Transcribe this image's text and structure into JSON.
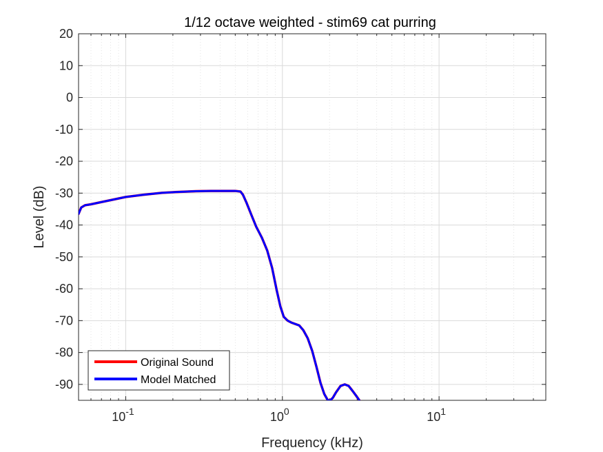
{
  "chart_data": {
    "type": "line",
    "title": "1/12 octave weighted - stim69 cat purring",
    "xlabel": "Frequency (kHz)",
    "ylabel": "Level (dB)",
    "xscale": "log",
    "xlim": [
      0.05,
      48
    ],
    "ylim": [
      -95,
      20
    ],
    "grid": true,
    "minor_grid": true,
    "x_ticks": [
      {
        "value": 0.1,
        "base": "10",
        "exp": "-1"
      },
      {
        "value": 1,
        "base": "10",
        "exp": "0"
      },
      {
        "value": 10,
        "base": "10",
        "exp": "1"
      }
    ],
    "y_ticks": [
      20,
      10,
      0,
      -10,
      -20,
      -30,
      -40,
      -50,
      -60,
      -70,
      -80,
      -90
    ],
    "legend": {
      "position": "bottom-left",
      "entries": [
        {
          "label": "Original Sound",
          "color": "#ff0000"
        },
        {
          "label": "Model Matched",
          "color": "#0000ff"
        }
      ]
    },
    "series": [
      {
        "name": "Original Sound",
        "color": "#ff0000",
        "x": [
          0.05,
          0.052,
          0.055,
          0.06,
          0.07,
          0.08,
          0.1,
          0.13,
          0.17,
          0.22,
          0.28,
          0.35,
          0.42,
          0.5,
          0.54,
          0.56,
          0.59,
          0.63,
          0.68,
          0.74,
          0.8,
          0.86,
          0.92,
          0.97,
          1.02,
          1.08,
          1.14,
          1.2,
          1.28,
          1.36,
          1.45,
          1.55,
          1.65,
          1.75,
          1.85,
          1.95,
          2.02,
          2.1,
          2.2,
          2.35,
          2.5,
          2.65,
          2.8,
          2.95,
          3.1
        ],
        "y": [
          -36.5,
          -34.5,
          -33.8,
          -33.5,
          -32.8,
          -32.2,
          -31.2,
          -30.5,
          -29.9,
          -29.6,
          -29.4,
          -29.3,
          -29.3,
          -29.3,
          -29.5,
          -30.5,
          -33,
          -36.5,
          -40.5,
          -44,
          -48,
          -53.5,
          -60.5,
          -65.5,
          -68.8,
          -70,
          -70.6,
          -71,
          -71.5,
          -73,
          -75.5,
          -79.5,
          -84.5,
          -89.5,
          -93,
          -95,
          -95,
          -94.2,
          -92.5,
          -90.5,
          -90,
          -90.5,
          -92,
          -93.5,
          -95
        ]
      },
      {
        "name": "Model Matched",
        "color": "#0000ff",
        "x": [
          0.05,
          0.052,
          0.055,
          0.06,
          0.07,
          0.08,
          0.1,
          0.13,
          0.17,
          0.22,
          0.28,
          0.35,
          0.42,
          0.5,
          0.54,
          0.56,
          0.59,
          0.63,
          0.68,
          0.74,
          0.8,
          0.86,
          0.92,
          0.97,
          1.02,
          1.08,
          1.14,
          1.2,
          1.28,
          1.36,
          1.45,
          1.55,
          1.65,
          1.75,
          1.85,
          1.95,
          2.02,
          2.1,
          2.2,
          2.35,
          2.5,
          2.65,
          2.8,
          2.95,
          3.1
        ],
        "y": [
          -36.5,
          -34.5,
          -33.8,
          -33.5,
          -32.8,
          -32.2,
          -31.2,
          -30.5,
          -29.9,
          -29.6,
          -29.4,
          -29.3,
          -29.3,
          -29.3,
          -29.5,
          -30.5,
          -33,
          -36.5,
          -40.5,
          -44,
          -48,
          -53.5,
          -60.5,
          -65.5,
          -68.8,
          -70,
          -70.6,
          -71,
          -71.5,
          -73,
          -75.5,
          -79.5,
          -84.5,
          -89.5,
          -93,
          -95,
          -95,
          -94.2,
          -92.5,
          -90.5,
          -90,
          -90.5,
          -92,
          -93.5,
          -95
        ]
      }
    ]
  }
}
